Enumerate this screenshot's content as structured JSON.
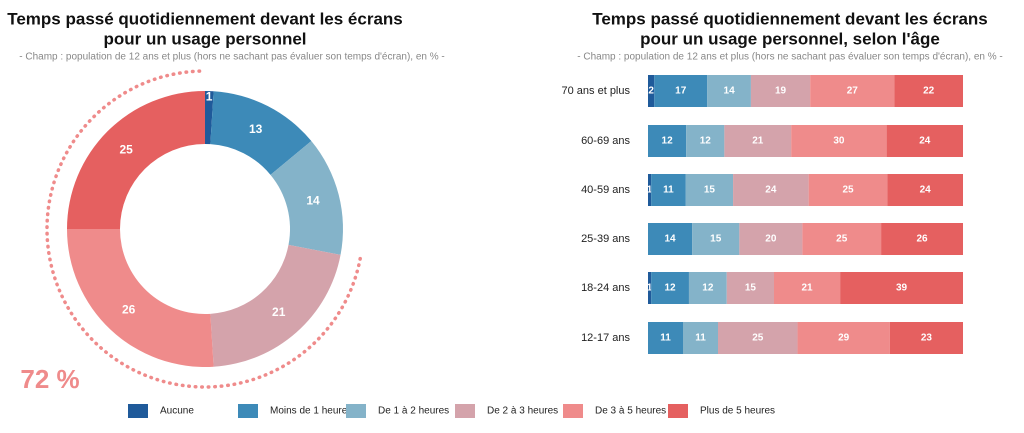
{
  "chart_data": [
    {
      "type": "donut",
      "title": [
        "Temps passé quotidiennement devant les écrans",
        "pour un usage personnel"
      ],
      "subtitle": "- Champ : population de 12 ans et plus (hors ne sachant pas évaluer son temps d'écran), en % -",
      "categories": [
        "Aucune",
        "Moins de 1 heure",
        "De 1 à 2 heures",
        "De 2 à 3 heures",
        "De 3 à 5 heures",
        "Plus de 5 heures"
      ],
      "values": [
        1,
        13,
        14,
        21,
        26,
        25
      ],
      "colors": [
        "#1f5a9a",
        "#3d8ab8",
        "#84b3c9",
        "#d4a3ab",
        "#ef8b8b",
        "#e56060"
      ],
      "annotation": {
        "value": 72,
        "label": "72 %"
      }
    },
    {
      "type": "bar",
      "orientation": "horizontal",
      "stacked": true,
      "title": [
        "Temps passé quotidiennement devant les écrans",
        "pour un usage personnel, selon l'âge"
      ],
      "subtitle": "- Champ : population de 12 ans et plus (hors ne sachant pas évaluer son temps d'écran), en % -",
      "categories": [
        "70 ans et plus",
        "60-69 ans",
        "40-59 ans",
        "25-39 ans",
        "18-24 ans",
        "12-17 ans"
      ],
      "series": [
        {
          "name": "Aucune",
          "color": "#1f5a9a",
          "values": [
            2,
            0,
            1,
            0,
            1,
            0
          ]
        },
        {
          "name": "Moins de 1 heure",
          "color": "#3d8ab8",
          "values": [
            17,
            12,
            11,
            14,
            12,
            11
          ]
        },
        {
          "name": "De 1 à 2 heures",
          "color": "#84b3c9",
          "values": [
            14,
            12,
            15,
            15,
            12,
            11
          ]
        },
        {
          "name": "De 2 à 3 heures",
          "color": "#d4a3ab",
          "values": [
            19,
            21,
            24,
            20,
            15,
            25
          ]
        },
        {
          "name": "De 3 à 5 heures",
          "color": "#ef8b8b",
          "values": [
            27,
            30,
            25,
            25,
            21,
            29
          ]
        },
        {
          "name": "Plus de 5 heures",
          "color": "#e56060",
          "values": [
            22,
            24,
            24,
            26,
            39,
            23
          ]
        }
      ],
      "legend": "bottom"
    }
  ]
}
